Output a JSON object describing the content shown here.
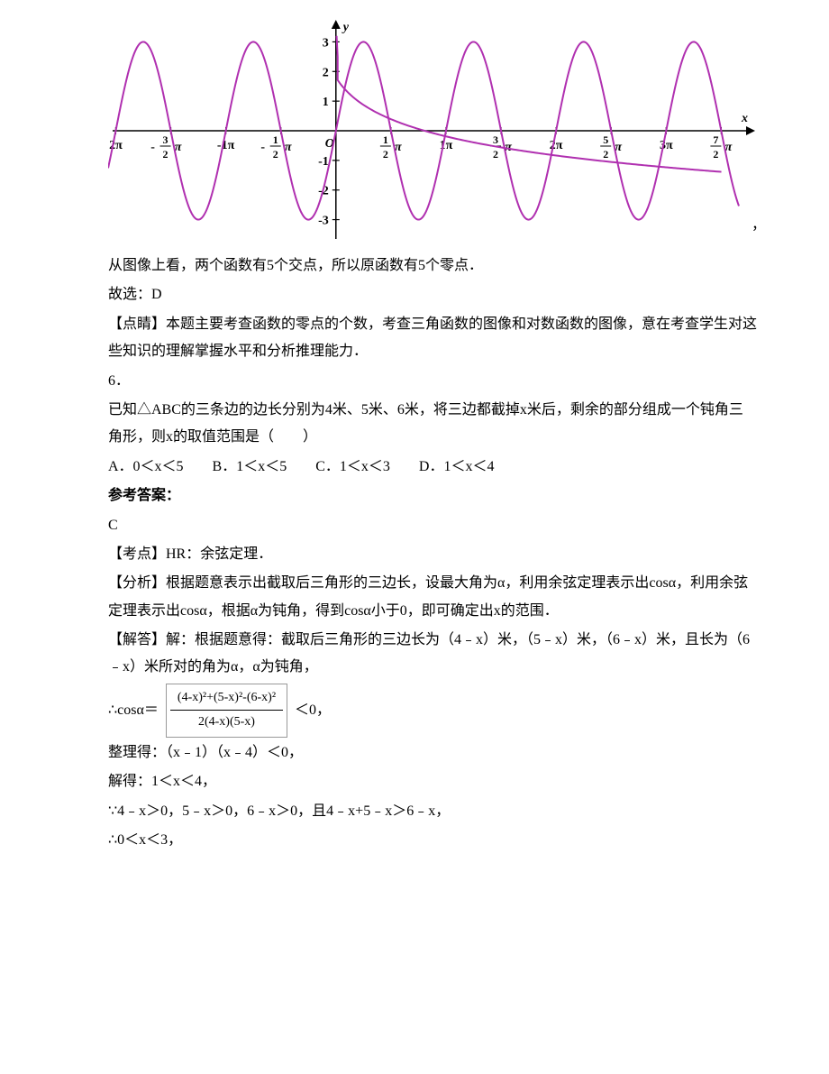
{
  "chart": {
    "type": "line",
    "background_color": "#ffffff",
    "line_color": "#b030b0",
    "line_width": 2,
    "axis_color": "#000000",
    "axis_width": 1.5,
    "xlim": [
      -6.5,
      11.5
    ],
    "ylim": [
      -3.5,
      3.5
    ],
    "y_ticks": [
      {
        "value": 3,
        "label": "3"
      },
      {
        "value": 2,
        "label": "2"
      },
      {
        "value": 1,
        "label": "1"
      },
      {
        "value": -1,
        "label": "-1"
      },
      {
        "value": -2,
        "label": "-2"
      },
      {
        "value": -3,
        "label": "-3"
      }
    ],
    "x_ticks": [
      {
        "value": -6.283,
        "label": "2π",
        "neg": true
      },
      {
        "value": -4.712,
        "label": "3/2π",
        "neg": true,
        "frac": true,
        "num": "3",
        "den": "2"
      },
      {
        "value": -3.1416,
        "label": "-1π"
      },
      {
        "value": -1.5708,
        "label": "1/2π",
        "neg": true,
        "frac": true,
        "num": "1",
        "den": "2"
      },
      {
        "value": 1.5708,
        "label": "1/2π",
        "frac": true,
        "num": "1",
        "den": "2"
      },
      {
        "value": 3.1416,
        "label": "1π"
      },
      {
        "value": 4.712,
        "label": "3/2π",
        "frac": true,
        "num": "3",
        "den": "2"
      },
      {
        "value": 6.283,
        "label": "2π"
      },
      {
        "value": 7.854,
        "label": "5/2π",
        "frac": true,
        "num": "5",
        "den": "2"
      },
      {
        "value": 9.4248,
        "label": "3π"
      },
      {
        "value": 10.996,
        "label": "7/2π",
        "frac": true,
        "num": "7",
        "den": "2"
      }
    ],
    "x_axis_label": "x",
    "y_axis_label": "y",
    "origin_label": "O",
    "tick_fontsize": 14,
    "sine_amplitude": 3,
    "sine_period": 3.1416,
    "log_curve": true
  },
  "text": {
    "line1": "从图像上看，两个函数有5个交点，所以原函数有5个零点．",
    "line2": "故选：D",
    "line3": "【点睛】本题主要考查函数的零点的个数，考查三角函数的图像和对数函数的图像，意在考查学生对这些知识的理解掌握水平和分析推理能力．",
    "q6_num": "6．",
    "q6_text": "已知△ABC的三条边的边长分别为4米、5米、6米，将三边都截掉x米后，剩余的部分组成一个钝角三角形，则x的取值范围是（　　）",
    "q6_options": "A．0＜x＜5　　B．1＜x＜5　　C．1＜x＜3　　D．1＜x＜4",
    "ref_answer_label": "参考答案：",
    "q6_answer": "C",
    "q6_kaodian": "【考点】HR：余弦定理．",
    "q6_fenxi": "【分析】根据题意表示出截取后三角形的三边长，设最大角为α，利用余弦定理表示出cosα，利用余弦定理表示出cosα，根据α为钝角，得到cosα小于0，即可确定出x的范围．",
    "q6_jieda1": "【解答】解：根据题意得：截取后三角形的三边长为（4﹣x）米，（5﹣x）米，（6﹣x）米，且长为（6﹣x）米所对的角为α，α为钝角，",
    "cos_prefix": "∴cosα＝",
    "cos_numerator": "(4-x)²+(5-x)²-(6-x)²",
    "cos_denominator": "2(4-x)(5-x)",
    "cos_suffix": "＜0，",
    "q6_zhengli": "整理得：（x﹣1）（x﹣4）＜0，",
    "q6_jiede": "解得：1＜x＜4，",
    "q6_since": "∵4﹣x＞0，5﹣x＞0，6﹣x＞0，且4﹣x+5﹣x＞6﹣x，",
    "q6_conclude": "∴0＜x＜3，"
  }
}
